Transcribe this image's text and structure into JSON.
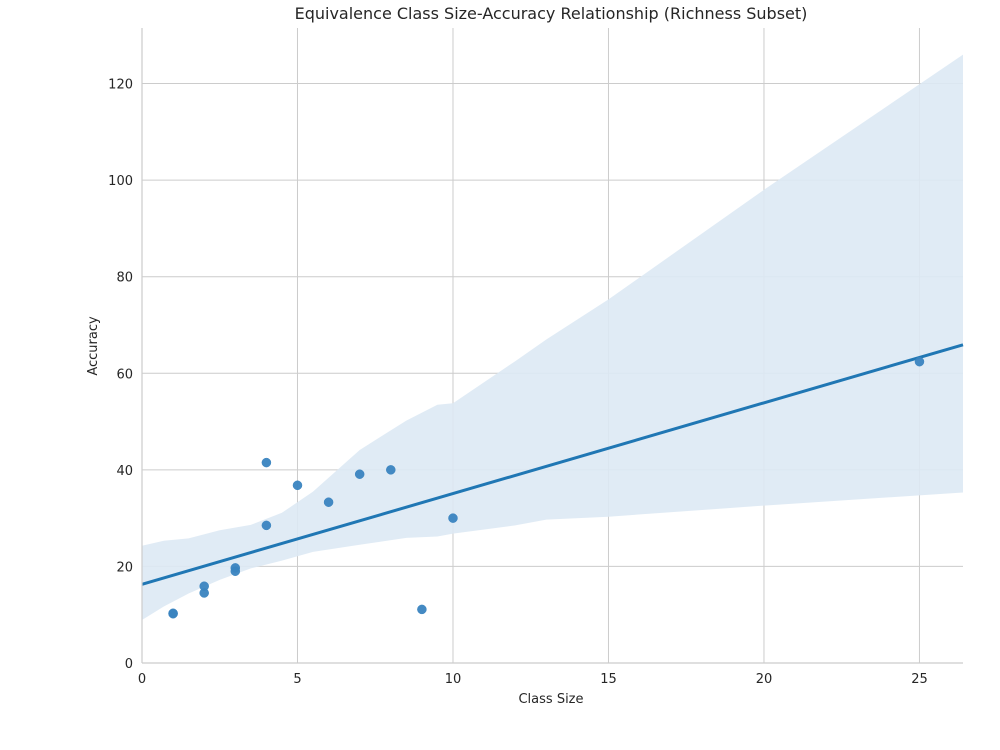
{
  "chart_data": {
    "type": "scatter",
    "title": "Equivalence Class Size-Accuracy Relationship (Richness Subset)",
    "xlabel": "Class Size",
    "ylabel": "Accuracy",
    "xlim": [
      0,
      26.4
    ],
    "ylim": [
      0,
      131.5
    ],
    "xticks": [
      0,
      5,
      10,
      15,
      20,
      25
    ],
    "yticks": [
      0,
      20,
      40,
      60,
      80,
      100,
      120
    ],
    "grid": true,
    "points": [
      {
        "x": 1,
        "y": 10.3
      },
      {
        "x": 1,
        "y": 10.2
      },
      {
        "x": 2,
        "y": 15.9
      },
      {
        "x": 2,
        "y": 14.5
      },
      {
        "x": 3,
        "y": 19.7
      },
      {
        "x": 3,
        "y": 19.0
      },
      {
        "x": 4,
        "y": 41.5
      },
      {
        "x": 4,
        "y": 28.5
      },
      {
        "x": 5,
        "y": 36.8
      },
      {
        "x": 6,
        "y": 33.3
      },
      {
        "x": 7,
        "y": 39.1
      },
      {
        "x": 8,
        "y": 40.0
      },
      {
        "x": 9,
        "y": 11.1
      },
      {
        "x": 10,
        "y": 30.0
      },
      {
        "x": 25,
        "y": 62.4
      }
    ],
    "regression_line": {
      "x": [
        0,
        26.4
      ],
      "y": [
        16.3,
        65.9
      ]
    },
    "confidence_band": {
      "x": [
        0,
        0.7,
        1.5,
        2.5,
        3.5,
        4.5,
        5.5,
        7,
        8.5,
        9.5,
        10,
        12,
        13,
        15,
        20,
        26.4
      ],
      "lower": [
        8.9,
        11.7,
        14.4,
        17.2,
        19.6,
        21.2,
        23.0,
        24.5,
        25.9,
        26.2,
        26.8,
        28.5,
        29.7,
        30.3,
        32.6,
        35.3
      ],
      "upper": [
        24.3,
        25.3,
        25.8,
        27.5,
        28.6,
        31.1,
        35.5,
        44.1,
        50.2,
        53.5,
        53.8,
        62.5,
        67.0,
        75.3,
        98.0,
        126.0
      ]
    },
    "colors": {
      "points": "#3a84c0",
      "line": "#2077b4",
      "band": "#dde9f4",
      "grid": "#cccccc"
    }
  }
}
